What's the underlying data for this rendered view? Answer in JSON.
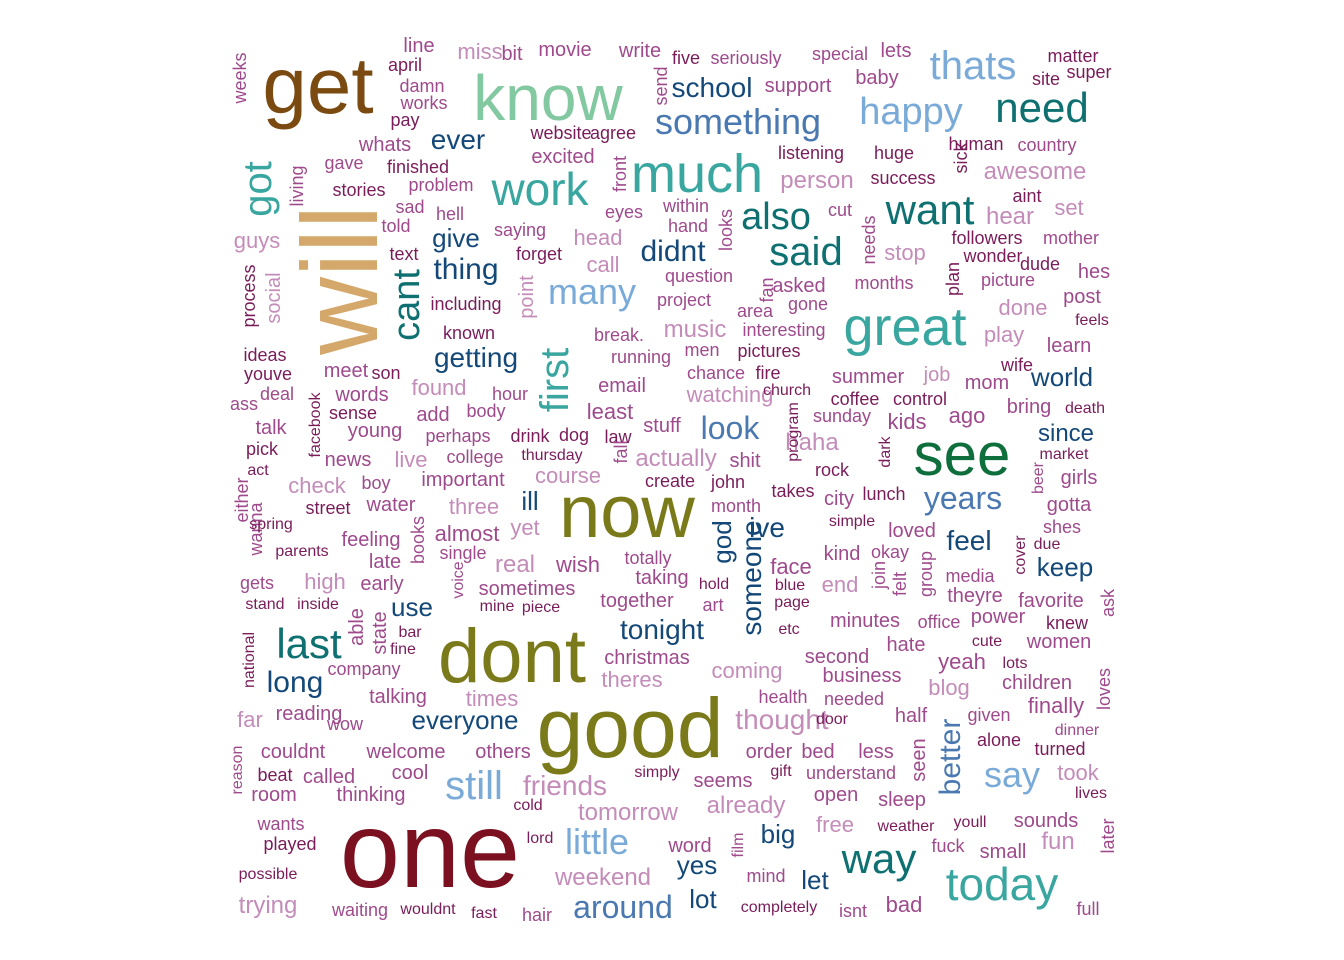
{
  "palette": {
    "brown": "#7a4a10",
    "tan": "#d4a86a",
    "mint": "#82c8a0",
    "teal": "#3aa6a0",
    "teal_dark": "#0e7070",
    "green": "#0e6e3c",
    "olive": "#7a7a1a",
    "maroon": "#7a1020",
    "navy": "#134878",
    "steel": "#4a78b0",
    "sky": "#7aaad8",
    "pink": "#c48cb8",
    "plum": "#9e4a8c",
    "wine": "#7a1c5a"
  },
  "words": [
    {
      "t": "one",
      "c": "maroon"
    },
    {
      "t": "good",
      "c": "olive"
    },
    {
      "t": "dont",
      "c": "olive"
    },
    {
      "t": "now",
      "c": "olive"
    },
    {
      "t": "will",
      "c": "tan"
    },
    {
      "t": "get",
      "c": "brown"
    },
    {
      "t": "know",
      "c": "mint"
    },
    {
      "t": "see",
      "c": "green"
    },
    {
      "t": "much",
      "c": "teal"
    },
    {
      "t": "great",
      "c": "teal"
    },
    {
      "t": "work",
      "c": "teal"
    },
    {
      "t": "today",
      "c": "teal"
    },
    {
      "t": "way",
      "c": "teal_dark"
    },
    {
      "t": "want",
      "c": "teal_dark"
    },
    {
      "t": "need",
      "c": "teal_dark"
    },
    {
      "t": "said",
      "c": "teal_dark"
    },
    {
      "t": "also",
      "c": "teal_dark"
    },
    {
      "t": "cant",
      "c": "teal_dark"
    },
    {
      "t": "got",
      "c": "teal"
    },
    {
      "t": "last",
      "c": "teal_dark"
    },
    {
      "t": "first",
      "c": "teal"
    },
    {
      "t": "thats",
      "c": "sky"
    },
    {
      "t": "happy",
      "c": "sky"
    },
    {
      "t": "many",
      "c": "sky"
    },
    {
      "t": "still",
      "c": "sky"
    },
    {
      "t": "little",
      "c": "sky"
    },
    {
      "t": "say",
      "c": "sky"
    },
    {
      "t": "something",
      "c": "steel"
    },
    {
      "t": "years",
      "c": "steel"
    },
    {
      "t": "look",
      "c": "steel"
    },
    {
      "t": "better",
      "c": "steel"
    },
    {
      "t": "around",
      "c": "steel"
    },
    {
      "t": "didnt",
      "c": "navy"
    },
    {
      "t": "thing",
      "c": "navy"
    },
    {
      "t": "school",
      "c": "navy"
    },
    {
      "t": "ever",
      "c": "navy"
    },
    {
      "t": "give",
      "c": "navy"
    },
    {
      "t": "getting",
      "c": "navy"
    },
    {
      "t": "ill",
      "c": "navy"
    },
    {
      "t": "ive",
      "c": "navy"
    },
    {
      "t": "feel",
      "c": "navy"
    },
    {
      "t": "keep",
      "c": "navy"
    },
    {
      "t": "since",
      "c": "navy"
    },
    {
      "t": "world",
      "c": "navy"
    },
    {
      "t": "tonight",
      "c": "navy"
    },
    {
      "t": "long",
      "c": "navy"
    },
    {
      "t": "everyone",
      "c": "navy"
    },
    {
      "t": "use",
      "c": "navy"
    },
    {
      "t": "god",
      "c": "navy"
    },
    {
      "t": "someone",
      "c": "navy"
    },
    {
      "t": "big",
      "c": "navy"
    },
    {
      "t": "yes",
      "c": "navy"
    },
    {
      "t": "let",
      "c": "navy"
    },
    {
      "t": "lot",
      "c": "navy"
    },
    {
      "t": "friends",
      "c": "pink"
    },
    {
      "t": "tomorrow",
      "c": "pink"
    },
    {
      "t": "weekend",
      "c": "pink"
    },
    {
      "t": "already",
      "c": "pink"
    },
    {
      "t": "thought",
      "c": "pink"
    },
    {
      "t": "watching",
      "c": "pink"
    },
    {
      "t": "actually",
      "c": "pink"
    },
    {
      "t": "music",
      "c": "pink"
    },
    {
      "t": "haha",
      "c": "pink"
    },
    {
      "t": "course",
      "c": "pink"
    },
    {
      "t": "check",
      "c": "pink"
    },
    {
      "t": "live",
      "c": "pink"
    },
    {
      "t": "found",
      "c": "pink"
    },
    {
      "t": "three",
      "c": "pink"
    },
    {
      "t": "real",
      "c": "pink"
    },
    {
      "t": "yet",
      "c": "pink"
    },
    {
      "t": "high",
      "c": "pink"
    },
    {
      "t": "person",
      "c": "pink"
    },
    {
      "t": "awesome",
      "c": "pink"
    },
    {
      "t": "hear",
      "c": "pink"
    },
    {
      "t": "set",
      "c": "pink"
    },
    {
      "t": "stop",
      "c": "pink"
    },
    {
      "t": "done",
      "c": "pink"
    },
    {
      "t": "play",
      "c": "pink"
    },
    {
      "t": "job",
      "c": "pink"
    },
    {
      "t": "end",
      "c": "pink"
    },
    {
      "t": "blog",
      "c": "pink"
    },
    {
      "t": "coming",
      "c": "pink"
    },
    {
      "t": "theres",
      "c": "pink"
    },
    {
      "t": "times",
      "c": "pink"
    },
    {
      "t": "fun",
      "c": "pink"
    },
    {
      "t": "took",
      "c": "pink"
    },
    {
      "t": "free",
      "c": "pink"
    },
    {
      "t": "trying",
      "c": "pink"
    },
    {
      "t": "head",
      "c": "pink"
    },
    {
      "t": "call",
      "c": "pink"
    },
    {
      "t": "point",
      "c": "pink"
    },
    {
      "t": "guys",
      "c": "pink"
    },
    {
      "t": "miss",
      "c": "pink"
    },
    {
      "t": "far",
      "c": "pink"
    },
    {
      "t": "social",
      "c": "pink"
    },
    {
      "t": "movie",
      "c": "plum"
    },
    {
      "t": "bit",
      "c": "plum"
    },
    {
      "t": "line",
      "c": "plum"
    },
    {
      "t": "write",
      "c": "plum"
    },
    {
      "t": "seriously",
      "c": "plum"
    },
    {
      "t": "special",
      "c": "plum"
    },
    {
      "t": "lets",
      "c": "plum"
    },
    {
      "t": "baby",
      "c": "plum"
    },
    {
      "t": "support",
      "c": "plum"
    },
    {
      "t": "five",
      "c": "wine"
    },
    {
      "t": "send",
      "c": "plum"
    },
    {
      "t": "matter",
      "c": "wine"
    },
    {
      "t": "site",
      "c": "wine"
    },
    {
      "t": "super",
      "c": "wine"
    },
    {
      "t": "april",
      "c": "wine"
    },
    {
      "t": "damn",
      "c": "plum"
    },
    {
      "t": "works",
      "c": "plum"
    },
    {
      "t": "pay",
      "c": "wine"
    },
    {
      "t": "weeks",
      "c": "plum"
    },
    {
      "t": "website",
      "c": "wine"
    },
    {
      "t": "agree",
      "c": "wine"
    },
    {
      "t": "whats",
      "c": "plum"
    },
    {
      "t": "gave",
      "c": "plum"
    },
    {
      "t": "finished",
      "c": "wine"
    },
    {
      "t": "excited",
      "c": "plum"
    },
    {
      "t": "front",
      "c": "plum"
    },
    {
      "t": "listening",
      "c": "wine"
    },
    {
      "t": "huge",
      "c": "wine"
    },
    {
      "t": "human",
      "c": "wine"
    },
    {
      "t": "country",
      "c": "plum"
    },
    {
      "t": "sick",
      "c": "wine"
    },
    {
      "t": "success",
      "c": "wine"
    },
    {
      "t": "aint",
      "c": "wine"
    },
    {
      "t": "stories",
      "c": "wine"
    },
    {
      "t": "problem",
      "c": "plum"
    },
    {
      "t": "living",
      "c": "plum"
    },
    {
      "t": "sad",
      "c": "plum"
    },
    {
      "t": "hell",
      "c": "plum"
    },
    {
      "t": "eyes",
      "c": "plum"
    },
    {
      "t": "within",
      "c": "plum"
    },
    {
      "t": "cut",
      "c": "plum"
    },
    {
      "t": "hand",
      "c": "plum"
    },
    {
      "t": "looks",
      "c": "plum"
    },
    {
      "t": "told",
      "c": "plum"
    },
    {
      "t": "saying",
      "c": "plum"
    },
    {
      "t": "needs",
      "c": "plum"
    },
    {
      "t": "followers",
      "c": "wine"
    },
    {
      "t": "mother",
      "c": "plum"
    },
    {
      "t": "text",
      "c": "wine"
    },
    {
      "t": "forget",
      "c": "wine"
    },
    {
      "t": "wonder",
      "c": "wine"
    },
    {
      "t": "dude",
      "c": "wine"
    },
    {
      "t": "question",
      "c": "plum"
    },
    {
      "t": "fan",
      "c": "plum"
    },
    {
      "t": "asked",
      "c": "plum"
    },
    {
      "t": "picture",
      "c": "plum"
    },
    {
      "t": "hes",
      "c": "plum"
    },
    {
      "t": "months",
      "c": "plum"
    },
    {
      "t": "plan",
      "c": "wine"
    },
    {
      "t": "process",
      "c": "wine"
    },
    {
      "t": "including",
      "c": "wine"
    },
    {
      "t": "project",
      "c": "plum"
    },
    {
      "t": "area",
      "c": "plum"
    },
    {
      "t": "gone",
      "c": "plum"
    },
    {
      "t": "post",
      "c": "plum"
    },
    {
      "t": "feels",
      "c": "wine"
    },
    {
      "t": "known",
      "c": "wine"
    },
    {
      "t": "break.",
      "c": "plum"
    },
    {
      "t": "interesting",
      "c": "plum"
    },
    {
      "t": "learn",
      "c": "plum"
    },
    {
      "t": "ideas",
      "c": "wine"
    },
    {
      "t": "running",
      "c": "plum"
    },
    {
      "t": "men",
      "c": "plum"
    },
    {
      "t": "pictures",
      "c": "wine"
    },
    {
      "t": "youve",
      "c": "wine"
    },
    {
      "t": "meet",
      "c": "plum"
    },
    {
      "t": "son",
      "c": "wine"
    },
    {
      "t": "chance",
      "c": "plum"
    },
    {
      "t": "fire",
      "c": "wine"
    },
    {
      "t": "summer",
      "c": "plum"
    },
    {
      "t": "wife",
      "c": "wine"
    },
    {
      "t": "mom",
      "c": "plum"
    },
    {
      "t": "deal",
      "c": "plum"
    },
    {
      "t": "words",
      "c": "plum"
    },
    {
      "t": "email",
      "c": "plum"
    },
    {
      "t": "hour",
      "c": "plum"
    },
    {
      "t": "church",
      "c": "wine"
    },
    {
      "t": "coffee",
      "c": "wine"
    },
    {
      "t": "control",
      "c": "wine"
    },
    {
      "t": "bring",
      "c": "plum"
    },
    {
      "t": "ago",
      "c": "plum"
    },
    {
      "t": "ass",
      "c": "plum"
    },
    {
      "t": "sense",
      "c": "wine"
    },
    {
      "t": "body",
      "c": "plum"
    },
    {
      "t": "least",
      "c": "plum"
    },
    {
      "t": "facebook",
      "c": "wine"
    },
    {
      "t": "add",
      "c": "plum"
    },
    {
      "t": "sunday",
      "c": "plum"
    },
    {
      "t": "death",
      "c": "wine"
    },
    {
      "t": "talk",
      "c": "plum"
    },
    {
      "t": "young",
      "c": "plum"
    },
    {
      "t": "perhaps",
      "c": "plum"
    },
    {
      "t": "drink",
      "c": "wine"
    },
    {
      "t": "dog",
      "c": "wine"
    },
    {
      "t": "law",
      "c": "wine"
    },
    {
      "t": "stuff",
      "c": "plum"
    },
    {
      "t": "program",
      "c": "wine"
    },
    {
      "t": "kids",
      "c": "plum"
    },
    {
      "t": "pick",
      "c": "wine"
    },
    {
      "t": "news",
      "c": "plum"
    },
    {
      "t": "college",
      "c": "plum"
    },
    {
      "t": "thursday",
      "c": "wine"
    },
    {
      "t": "fall",
      "c": "plum"
    },
    {
      "t": "shit",
      "c": "plum"
    },
    {
      "t": "rock",
      "c": "wine"
    },
    {
      "t": "dark",
      "c": "wine"
    },
    {
      "t": "market",
      "c": "wine"
    },
    {
      "t": "act",
      "c": "wine"
    },
    {
      "t": "boy",
      "c": "plum"
    },
    {
      "t": "important",
      "c": "plum"
    },
    {
      "t": "create",
      "c": "wine"
    },
    {
      "t": "john",
      "c": "wine"
    },
    {
      "t": "takes",
      "c": "wine"
    },
    {
      "t": "city",
      "c": "plum"
    },
    {
      "t": "lunch",
      "c": "wine"
    },
    {
      "t": "beer",
      "c": "plum"
    },
    {
      "t": "girls",
      "c": "plum"
    },
    {
      "t": "either",
      "c": "plum"
    },
    {
      "t": "street",
      "c": "wine"
    },
    {
      "t": "water",
      "c": "plum"
    },
    {
      "t": "month",
      "c": "plum"
    },
    {
      "t": "simple",
      "c": "wine"
    },
    {
      "t": "gotta",
      "c": "plum"
    },
    {
      "t": "wanna",
      "c": "plum"
    },
    {
      "t": "spring",
      "c": "wine"
    },
    {
      "t": "feeling",
      "c": "plum"
    },
    {
      "t": "books",
      "c": "plum"
    },
    {
      "t": "almost",
      "c": "plum"
    },
    {
      "t": "loved",
      "c": "plum"
    },
    {
      "t": "shes",
      "c": "plum"
    },
    {
      "t": "parents",
      "c": "wine"
    },
    {
      "t": "single",
      "c": "plum"
    },
    {
      "t": "totally",
      "c": "plum"
    },
    {
      "t": "kind",
      "c": "plum"
    },
    {
      "t": "okay",
      "c": "plum"
    },
    {
      "t": "due",
      "c": "wine"
    },
    {
      "t": "late",
      "c": "plum"
    },
    {
      "t": "wish",
      "c": "plum"
    },
    {
      "t": "taking",
      "c": "plum"
    },
    {
      "t": "face",
      "c": "plum"
    },
    {
      "t": "join",
      "c": "plum"
    },
    {
      "t": "felt",
      "c": "plum"
    },
    {
      "t": "group",
      "c": "plum"
    },
    {
      "t": "cover",
      "c": "wine"
    },
    {
      "t": "gets",
      "c": "plum"
    },
    {
      "t": "early",
      "c": "plum"
    },
    {
      "t": "voice",
      "c": "plum"
    },
    {
      "t": "sometimes",
      "c": "plum"
    },
    {
      "t": "hold",
      "c": "wine"
    },
    {
      "t": "blue",
      "c": "wine"
    },
    {
      "t": "media",
      "c": "plum"
    },
    {
      "t": "stand",
      "c": "wine"
    },
    {
      "t": "inside",
      "c": "wine"
    },
    {
      "t": "mine",
      "c": "wine"
    },
    {
      "t": "piece",
      "c": "wine"
    },
    {
      "t": "together",
      "c": "plum"
    },
    {
      "t": "art",
      "c": "plum"
    },
    {
      "t": "page",
      "c": "wine"
    },
    {
      "t": "theyre",
      "c": "plum"
    },
    {
      "t": "favorite",
      "c": "plum"
    },
    {
      "t": "ask",
      "c": "plum"
    },
    {
      "t": "able",
      "c": "plum"
    },
    {
      "t": "state",
      "c": "plum"
    },
    {
      "t": "minutes",
      "c": "plum"
    },
    {
      "t": "office",
      "c": "plum"
    },
    {
      "t": "power",
      "c": "plum"
    },
    {
      "t": "knew",
      "c": "wine"
    },
    {
      "t": "bar",
      "c": "wine"
    },
    {
      "t": "etc",
      "c": "wine"
    },
    {
      "t": "hate",
      "c": "plum"
    },
    {
      "t": "cute",
      "c": "wine"
    },
    {
      "t": "women",
      "c": "plum"
    },
    {
      "t": "national",
      "c": "wine"
    },
    {
      "t": "fine",
      "c": "wine"
    },
    {
      "t": "christmas",
      "c": "plum"
    },
    {
      "t": "second",
      "c": "plum"
    },
    {
      "t": "yeah",
      "c": "plum"
    },
    {
      "t": "lots",
      "c": "wine"
    },
    {
      "t": "company",
      "c": "plum"
    },
    {
      "t": "business",
      "c": "plum"
    },
    {
      "t": "children",
      "c": "plum"
    },
    {
      "t": "talking",
      "c": "plum"
    },
    {
      "t": "health",
      "c": "plum"
    },
    {
      "t": "needed",
      "c": "plum"
    },
    {
      "t": "loves",
      "c": "plum"
    },
    {
      "t": "reading",
      "c": "plum"
    },
    {
      "t": "half",
      "c": "plum"
    },
    {
      "t": "given",
      "c": "plum"
    },
    {
      "t": "finally",
      "c": "plum"
    },
    {
      "t": "wow",
      "c": "plum"
    },
    {
      "t": "door",
      "c": "wine"
    },
    {
      "t": "seen",
      "c": "plum"
    },
    {
      "t": "dinner",
      "c": "plum"
    },
    {
      "t": "reason",
      "c": "plum"
    },
    {
      "t": "couldnt",
      "c": "plum"
    },
    {
      "t": "welcome",
      "c": "plum"
    },
    {
      "t": "others",
      "c": "plum"
    },
    {
      "t": "order",
      "c": "plum"
    },
    {
      "t": "bed",
      "c": "plum"
    },
    {
      "t": "less",
      "c": "plum"
    },
    {
      "t": "alone",
      "c": "wine"
    },
    {
      "t": "turned",
      "c": "wine"
    },
    {
      "t": "beat",
      "c": "wine"
    },
    {
      "t": "called",
      "c": "plum"
    },
    {
      "t": "cool",
      "c": "plum"
    },
    {
      "t": "simply",
      "c": "wine"
    },
    {
      "t": "gift",
      "c": "wine"
    },
    {
      "t": "understand",
      "c": "plum"
    },
    {
      "t": "room",
      "c": "plum"
    },
    {
      "t": "thinking",
      "c": "plum"
    },
    {
      "t": "seems",
      "c": "plum"
    },
    {
      "t": "open",
      "c": "plum"
    },
    {
      "t": "sleep",
      "c": "plum"
    },
    {
      "t": "lives",
      "c": "wine"
    },
    {
      "t": "cold",
      "c": "wine"
    },
    {
      "t": "wants",
      "c": "plum"
    },
    {
      "t": "lord",
      "c": "wine"
    },
    {
      "t": "weather",
      "c": "wine"
    },
    {
      "t": "youll",
      "c": "wine"
    },
    {
      "t": "sounds",
      "c": "plum"
    },
    {
      "t": "later",
      "c": "plum"
    },
    {
      "t": "played",
      "c": "wine"
    },
    {
      "t": "word",
      "c": "plum"
    },
    {
      "t": "film",
      "c": "plum"
    },
    {
      "t": "fuck",
      "c": "plum"
    },
    {
      "t": "small",
      "c": "plum"
    },
    {
      "t": "possible",
      "c": "wine"
    },
    {
      "t": "mind",
      "c": "plum"
    },
    {
      "t": "bad",
      "c": "plum"
    },
    {
      "t": "waiting",
      "c": "plum"
    },
    {
      "t": "wouldnt",
      "c": "wine"
    },
    {
      "t": "fast",
      "c": "wine"
    },
    {
      "t": "hair",
      "c": "plum"
    },
    {
      "t": "completely",
      "c": "wine"
    },
    {
      "t": "isnt",
      "c": "plum"
    },
    {
      "t": "full",
      "c": "plum"
    }
  ]
}
